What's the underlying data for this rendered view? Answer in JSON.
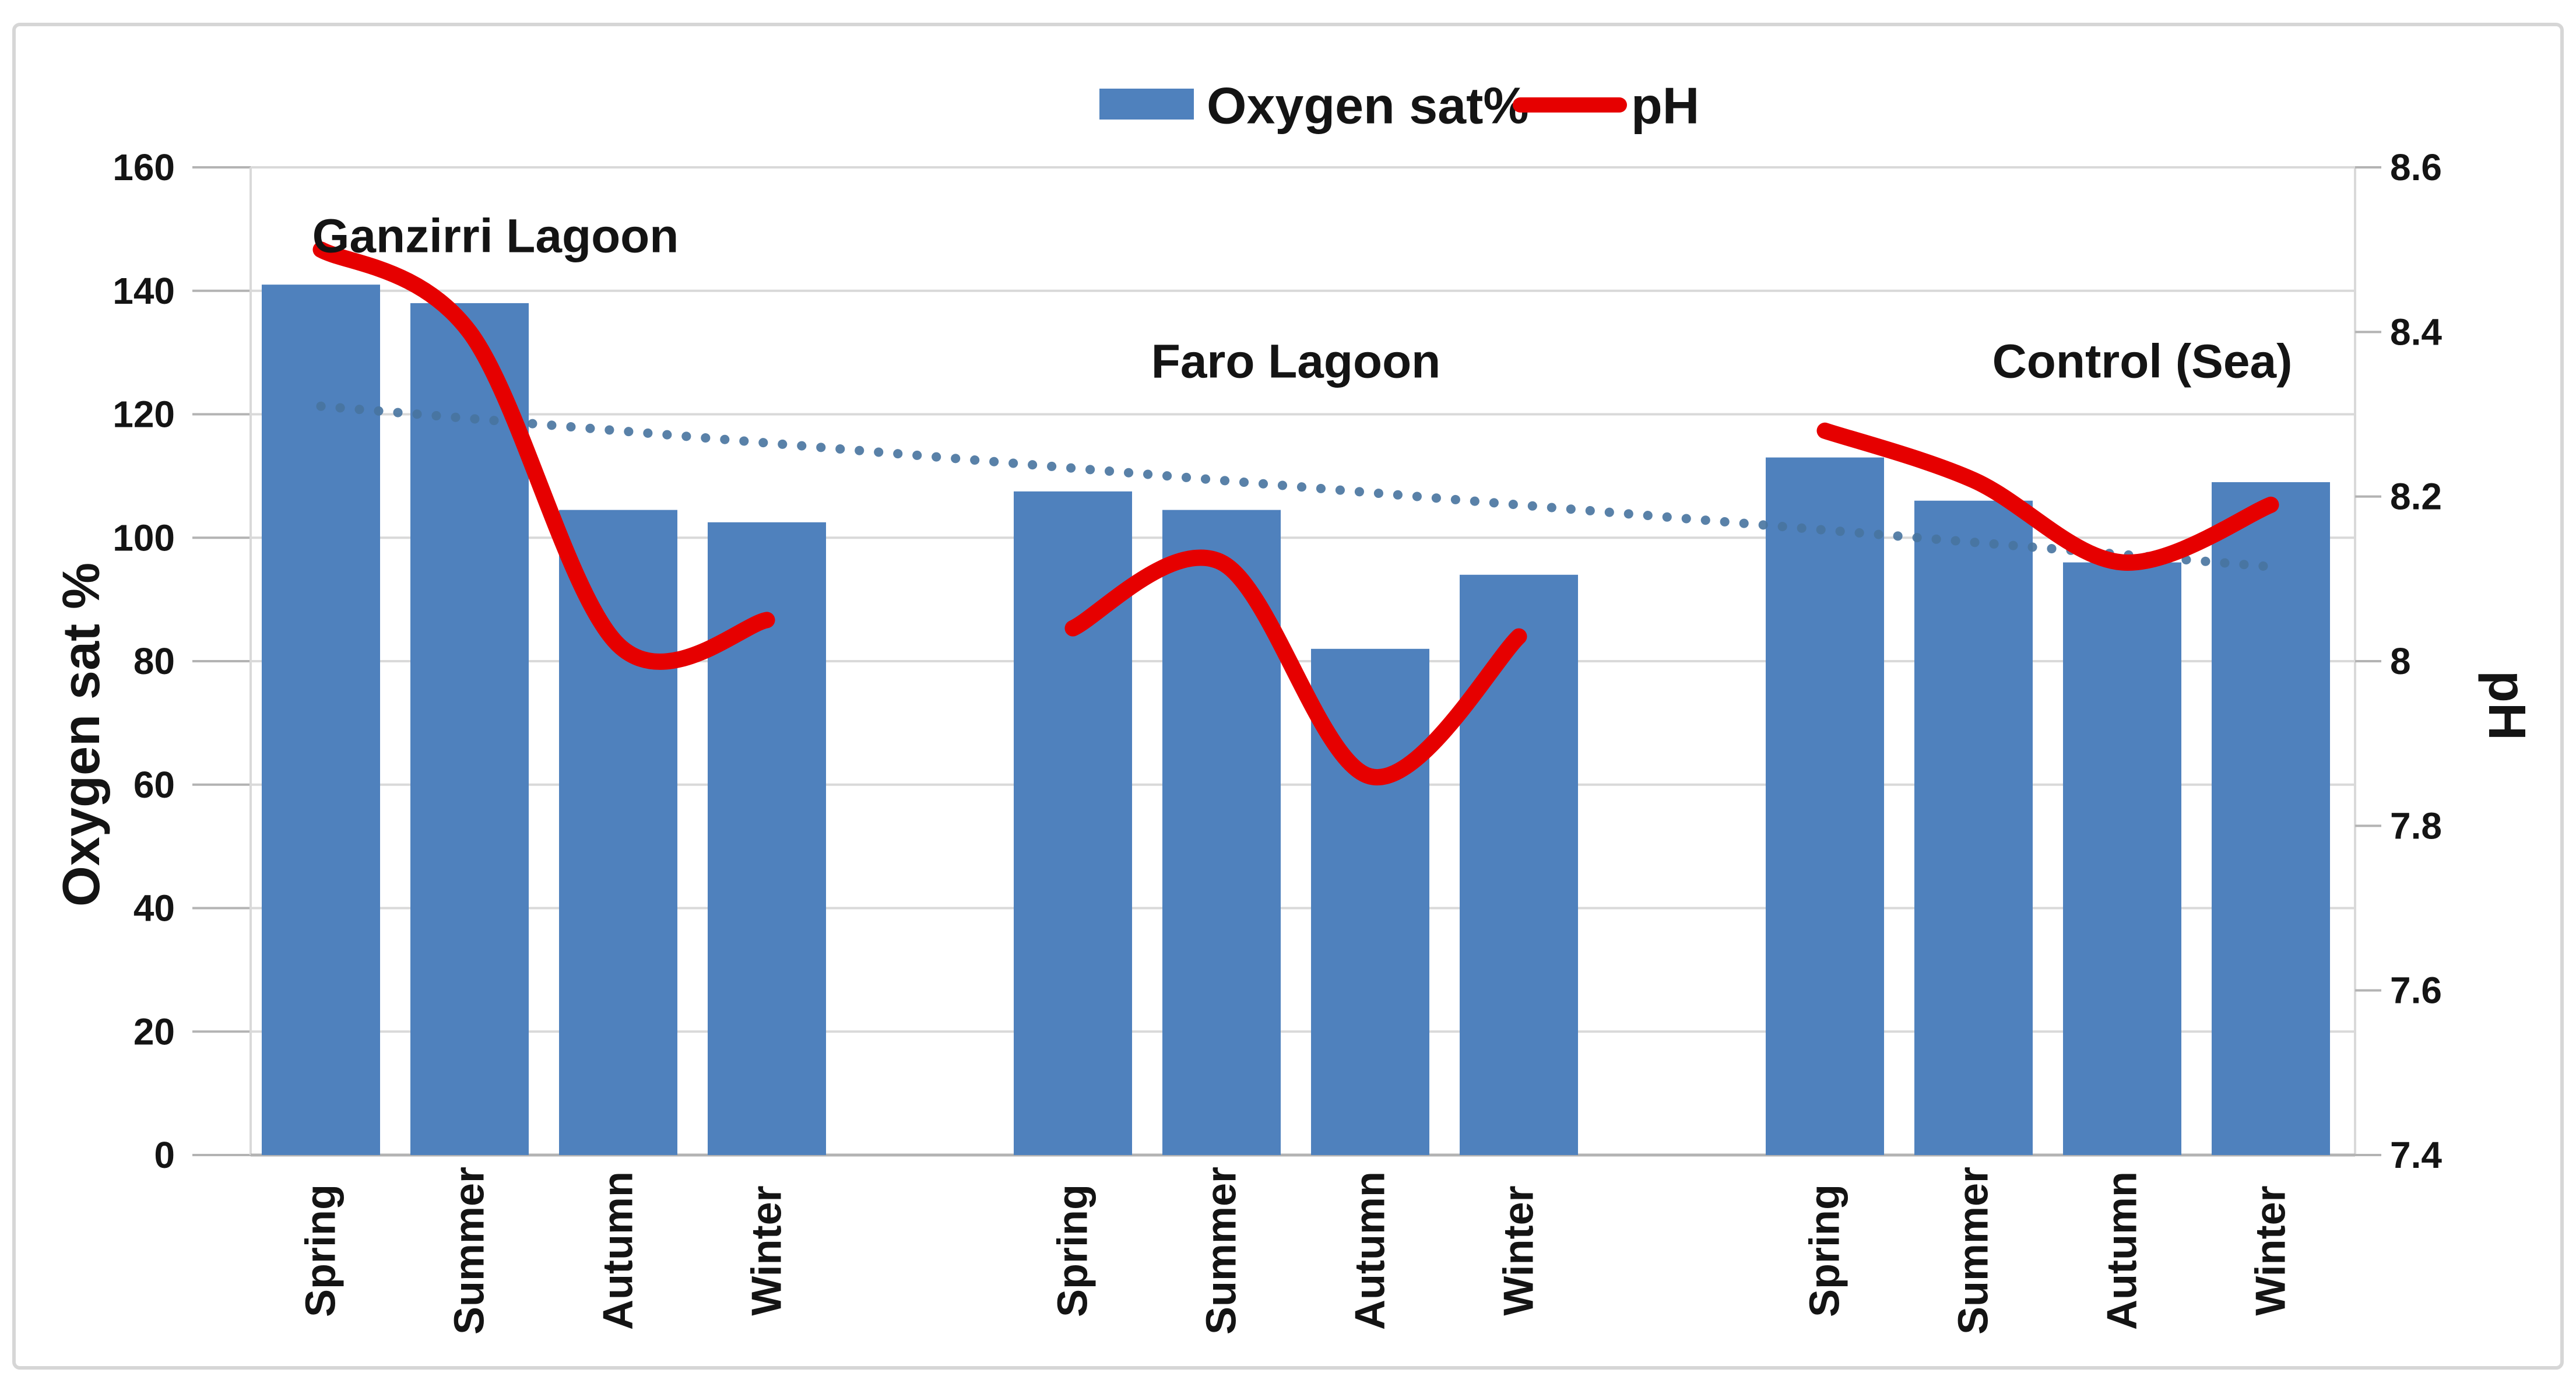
{
  "chart_data": {
    "type": "combo-bar-line",
    "title": "",
    "group_labels": [
      "Ganzirri Lagoon",
      "Faro Lagoon",
      "Control (Sea)"
    ],
    "groups": [
      {
        "label": "Ganzirri Lagoon",
        "categories": [
          "Spring",
          "Summer",
          "Autumn",
          "Winter"
        ],
        "oxygen_sat_pct": [
          141,
          138,
          104.5,
          102.5
        ],
        "ph": [
          8.5,
          8.4,
          8.02,
          8.05
        ]
      },
      {
        "label": "Faro Lagoon",
        "categories": [
          "Spring",
          "Summer",
          "Autumn",
          "Winter"
        ],
        "oxygen_sat_pct": [
          107.5,
          104.5,
          82,
          94
        ],
        "ph": [
          8.04,
          8.12,
          7.86,
          8.03
        ]
      },
      {
        "label": "Control (Sea)",
        "categories": [
          "Spring",
          "Summer",
          "Autumn",
          "Winter"
        ],
        "oxygen_sat_pct": [
          113,
          106,
          96,
          109
        ],
        "ph": [
          8.28,
          8.22,
          8.12,
          8.19
        ]
      }
    ],
    "series": [
      {
        "name": "Oxygen sat%",
        "type": "bar",
        "axis": "left",
        "color": "#4f81bd"
      },
      {
        "name": "pH",
        "type": "line",
        "axis": "right",
        "color": "#e60000"
      }
    ],
    "trendline": {
      "for_series": "Oxygen sat%",
      "style": "dotted",
      "color": "#47739f",
      "start_value": 121.3,
      "end_value": 95.3
    },
    "left_axis": {
      "title": "Oxygen sat %",
      "min": 0,
      "max": 160,
      "step": 20,
      "tick_labels": [
        "160",
        "140",
        "120",
        "100",
        "80",
        "60",
        "40",
        "20",
        "0"
      ]
    },
    "right_axis": {
      "title": "pH",
      "min": 7.4,
      "max": 8.6,
      "step": 0.2,
      "tick_labels": [
        "8.6",
        "8.4",
        "8.2",
        "8",
        "7.8",
        "7.6",
        "7.4"
      ]
    },
    "legend": {
      "position": "top",
      "items": [
        "Oxygen sat%",
        "pH"
      ]
    },
    "grid": true,
    "ylim_left": [
      0,
      160
    ],
    "ylim_right": [
      7.4,
      8.6
    ]
  },
  "colors": {
    "bar": "#4f81bd",
    "ph_line": "#e60000",
    "trendline": "#47739f",
    "gridline": "#d9d9d9",
    "axis_line": "#b3b3b3",
    "border": "#d6d6d6",
    "text": "#141414",
    "background": "#ffffff"
  }
}
